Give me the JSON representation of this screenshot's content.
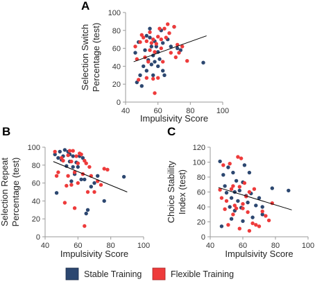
{
  "chart_data": [
    {
      "panel": "A",
      "type": "scatter",
      "xlabel": "Impulsivity Score",
      "ylabel_line1": "Selection Switch",
      "ylabel_line2": "Percentage (test)",
      "xlim": [
        40,
        100
      ],
      "ylim": [
        0,
        100
      ],
      "xticks": [
        40,
        60,
        80,
        100
      ],
      "yticks": [
        0,
        20,
        40,
        60,
        80,
        100
      ],
      "series": [
        {
          "name": "Stable Training",
          "points": [
            [
              46,
              55
            ],
            [
              47,
              22
            ],
            [
              48,
              67
            ],
            [
              49,
              30
            ],
            [
              50,
              18
            ],
            [
              51,
              40
            ],
            [
              52,
              58
            ],
            [
              53,
              35
            ],
            [
              53,
              74
            ],
            [
              54,
              47
            ],
            [
              55,
              82
            ],
            [
              55,
              72
            ],
            [
              56,
              42
            ],
            [
              56,
              62
            ],
            [
              57,
              30
            ],
            [
              57,
              52
            ],
            [
              58,
              68
            ],
            [
              58,
              45
            ],
            [
              59,
              62
            ],
            [
              60,
              56
            ],
            [
              60,
              40
            ],
            [
              61,
              48
            ],
            [
              62,
              80
            ],
            [
              63,
              35
            ],
            [
              63,
              66
            ],
            [
              64,
              30
            ],
            [
              66,
              70
            ],
            [
              68,
              62
            ],
            [
              70,
              84
            ],
            [
              72,
              60
            ],
            [
              74,
              58
            ],
            [
              88,
              44
            ]
          ]
        },
        {
          "name": "Flexible Training",
          "points": [
            [
              46,
              62
            ],
            [
              47,
              48
            ],
            [
              48,
              25
            ],
            [
              49,
              67
            ],
            [
              50,
              75
            ],
            [
              51,
              72
            ],
            [
              52,
              50
            ],
            [
              53,
              68
            ],
            [
              53,
              27
            ],
            [
              54,
              45
            ],
            [
              55,
              58
            ],
            [
              55,
              78
            ],
            [
              56,
              66
            ],
            [
              57,
              26
            ],
            [
              57,
              70
            ],
            [
              58,
              56
            ],
            [
              58,
              10
            ],
            [
              59,
              65
            ],
            [
              60,
              73
            ],
            [
              60,
              27
            ],
            [
              61,
              82
            ],
            [
              62,
              60
            ],
            [
              62,
              70
            ],
            [
              63,
              45
            ],
            [
              64,
              82
            ],
            [
              65,
              72
            ],
            [
              66,
              87
            ],
            [
              67,
              77
            ],
            [
              68,
              55
            ],
            [
              70,
              84
            ],
            [
              71,
              50
            ],
            [
              72,
              64
            ],
            [
              73,
              55
            ],
            [
              75,
              62
            ],
            [
              78,
              46
            ]
          ]
        }
      ],
      "trendline": [
        [
          45,
          45
        ],
        [
          90,
          74
        ]
      ]
    },
    {
      "panel": "B",
      "type": "scatter",
      "xlabel": "Impulsivity Score",
      "ylabel_line1": "Selection Repeat",
      "ylabel_line2": "Percentage (test)",
      "xlim": [
        40,
        100
      ],
      "ylim": [
        0,
        100
      ],
      "xticks": [
        40,
        60,
        80,
        100
      ],
      "yticks": [
        0,
        20,
        40,
        60,
        80,
        100
      ],
      "series": [
        {
          "name": "Stable Training",
          "points": [
            [
              46,
              92
            ],
            [
              47,
              49
            ],
            [
              48,
              88
            ],
            [
              49,
              95
            ],
            [
              50,
              86
            ],
            [
              51,
              90
            ],
            [
              52,
              97
            ],
            [
              53,
              79
            ],
            [
              54,
              95
            ],
            [
              55,
              92
            ],
            [
              55,
              84
            ],
            [
              56,
              62
            ],
            [
              57,
              90
            ],
            [
              57,
              78
            ],
            [
              58,
              70
            ],
            [
              59,
              83
            ],
            [
              60,
              78
            ],
            [
              61,
              90
            ],
            [
              62,
              64
            ],
            [
              63,
              88
            ],
            [
              64,
              64
            ],
            [
              65,
              26
            ],
            [
              66,
              30
            ],
            [
              68,
              56
            ],
            [
              70,
              60
            ],
            [
              72,
              68
            ],
            [
              76,
              40
            ],
            [
              88,
              67
            ]
          ]
        },
        {
          "name": "Flexible Training",
          "points": [
            [
              46,
              95
            ],
            [
              47,
              68
            ],
            [
              48,
              72
            ],
            [
              50,
              88
            ],
            [
              51,
              85
            ],
            [
              52,
              38
            ],
            [
              53,
              57
            ],
            [
              54,
              91
            ],
            [
              54,
              68
            ],
            [
              55,
              96
            ],
            [
              56,
              84
            ],
            [
              56,
              58
            ],
            [
              57,
              96
            ],
            [
              58,
              32
            ],
            [
              58,
              72
            ],
            [
              59,
              90
            ],
            [
              60,
              82
            ],
            [
              60,
              60
            ],
            [
              61,
              93
            ],
            [
              62,
              92
            ],
            [
              63,
              70
            ],
            [
              64,
              85
            ],
            [
              64,
              12
            ],
            [
              65,
              82
            ],
            [
              66,
              50
            ],
            [
              67,
              78
            ],
            [
              68,
              68
            ],
            [
              70,
              50
            ],
            [
              72,
              62
            ],
            [
              74,
              58
            ],
            [
              76,
              76
            ],
            [
              78,
              75
            ]
          ]
        }
      ],
      "trendline": [
        [
          45,
          84
        ],
        [
          90,
          50
        ]
      ]
    },
    {
      "panel": "C",
      "type": "scatter",
      "xlabel": "Impulsivity Score",
      "ylabel_line1": "Choice Stability",
      "ylabel_line2": "Index (test)",
      "xlim": [
        40,
        100
      ],
      "ylim": [
        0,
        120
      ],
      "xticks": [
        40,
        60,
        80,
        100
      ],
      "yticks": [
        0,
        20,
        40,
        60,
        80,
        100,
        120
      ],
      "series": [
        {
          "name": "Stable Training",
          "points": [
            [
              46,
              101
            ],
            [
              47,
              14
            ],
            [
              48,
              83
            ],
            [
              49,
              68
            ],
            [
              50,
              59
            ],
            [
              51,
              93
            ],
            [
              52,
              40
            ],
            [
              53,
              52
            ],
            [
              53,
              24
            ],
            [
              54,
              86
            ],
            [
              55,
              60
            ],
            [
              55,
              35
            ],
            [
              56,
              75
            ],
            [
              57,
              48
            ],
            [
              58,
              62
            ],
            [
              59,
              39
            ],
            [
              60,
              73
            ],
            [
              60,
              21
            ],
            [
              61,
              96
            ],
            [
              62,
              55
            ],
            [
              63,
              46
            ],
            [
              64,
              86
            ],
            [
              65,
              58
            ],
            [
              66,
              26
            ],
            [
              68,
              42
            ],
            [
              70,
              52
            ],
            [
              72,
              30
            ],
            [
              72,
              40
            ],
            [
              78,
              65
            ],
            [
              88,
              62
            ]
          ]
        },
        {
          "name": "Flexible Training",
          "points": [
            [
              46,
              63
            ],
            [
              47,
              52
            ],
            [
              48,
              96
            ],
            [
              49,
              37
            ],
            [
              50,
              48
            ],
            [
              51,
              16
            ],
            [
              52,
              98
            ],
            [
              53,
              64
            ],
            [
              54,
              68
            ],
            [
              54,
              30
            ],
            [
              55,
              42
            ],
            [
              56,
              38
            ],
            [
              57,
              107
            ],
            [
              58,
              67
            ],
            [
              58,
              11
            ],
            [
              59,
              105
            ],
            [
              60,
              38
            ],
            [
              60,
              44
            ],
            [
              61,
              72
            ],
            [
              62,
              54
            ],
            [
              63,
              33
            ],
            [
              64,
              8
            ],
            [
              64,
              60
            ],
            [
              66,
              18
            ],
            [
              67,
              64
            ],
            [
              68,
              16
            ],
            [
              70,
              14
            ],
            [
              72,
              34
            ],
            [
              74,
              28
            ],
            [
              76,
              22
            ],
            [
              78,
              45
            ]
          ]
        }
      ],
      "trendline": [
        [
          45,
          66
        ],
        [
          90,
          36
        ]
      ]
    }
  ],
  "legend": {
    "items": [
      {
        "label": "Stable Training",
        "color": "#2c4770"
      },
      {
        "label": "Flexible Training",
        "color": "#ee3b3b"
      }
    ]
  },
  "colors": {
    "stable": "#2c4770",
    "flexible": "#ee3b3b",
    "trendline": "#000000",
    "axis": "#9a9a9a"
  }
}
